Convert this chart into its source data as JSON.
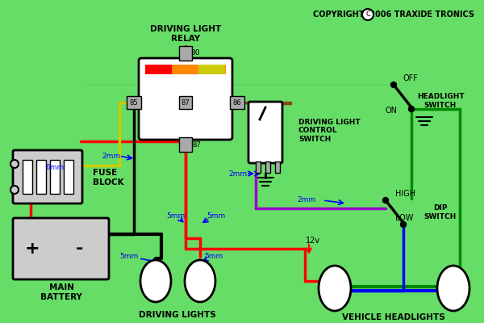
{
  "bg_color": "#66dd66",
  "title_relay": "DRIVING LIGHT\nRELAY",
  "title_copyright": "COPYRIGHT  2006 TRAXIDE TRONICS",
  "title_fuse": "FUSE\nBLOCK",
  "title_battery": "MAIN\nBATTERY",
  "title_driving_lights": "DRIVING LIGHTS",
  "title_vehicle_headlights": "VEHICLE HEADLIGHTS",
  "title_dlcs": "DRIVING LIGHT\nCONTROL\nSWITCH",
  "title_headlight_switch": "HEADLIGHT\nSWITCH",
  "title_dip_switch": "DIP\nSWITCH",
  "wire_red": "#ff0000",
  "wire_black": "#000000",
  "wire_green": "#008800",
  "wire_yellow": "#cccc00",
  "wire_brown": "#8B4513",
  "wire_purple": "#9900cc",
  "wire_blue": "#0000ff",
  "annotation_color": "#0000ff",
  "text_color": "#000000"
}
